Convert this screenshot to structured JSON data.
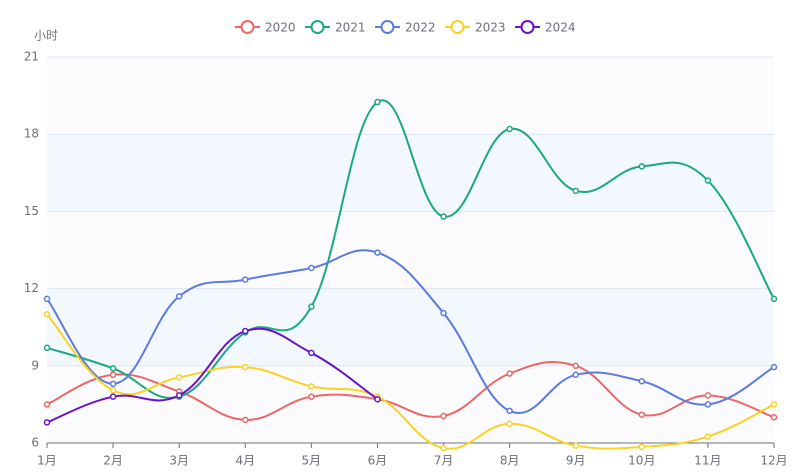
{
  "chart_data": {
    "type": "line",
    "y_axis_label": "小时",
    "categories": [
      "1月",
      "2月",
      "3月",
      "4月",
      "5月",
      "6月",
      "7月",
      "8月",
      "9月",
      "10月",
      "11月",
      "12月"
    ],
    "ylim": [
      6,
      21
    ],
    "yticks": [
      6,
      9,
      12,
      15,
      18,
      21
    ],
    "grid": true,
    "legend": "top",
    "series": [
      {
        "name": "2020",
        "color": "#ee6666",
        "values": [
          7.5,
          8.65,
          8.0,
          6.9,
          7.8,
          7.7,
          7.05,
          8.7,
          9.0,
          7.1,
          7.85,
          7.0
        ]
      },
      {
        "name": "2021",
        "color": "#1aa981",
        "values": [
          9.7,
          8.9,
          7.8,
          10.3,
          11.3,
          19.25,
          14.8,
          18.2,
          15.8,
          16.75,
          16.2,
          11.6
        ]
      },
      {
        "name": "2022",
        "color": "#5b7be0",
        "values": [
          11.6,
          8.3,
          11.7,
          12.35,
          12.8,
          13.4,
          11.05,
          7.25,
          8.65,
          8.4,
          7.5,
          8.95
        ]
      },
      {
        "name": "2023",
        "color": "#fad323",
        "values": [
          11.0,
          8.05,
          8.55,
          8.95,
          8.2,
          7.8,
          5.8,
          6.75,
          5.9,
          5.85,
          6.25,
          7.5
        ]
      },
      {
        "name": "2024",
        "color": "#6a12c9",
        "values": [
          6.8,
          7.8,
          7.85,
          10.35,
          9.5,
          7.7,
          null,
          null,
          null,
          null,
          null,
          null
        ]
      }
    ]
  }
}
